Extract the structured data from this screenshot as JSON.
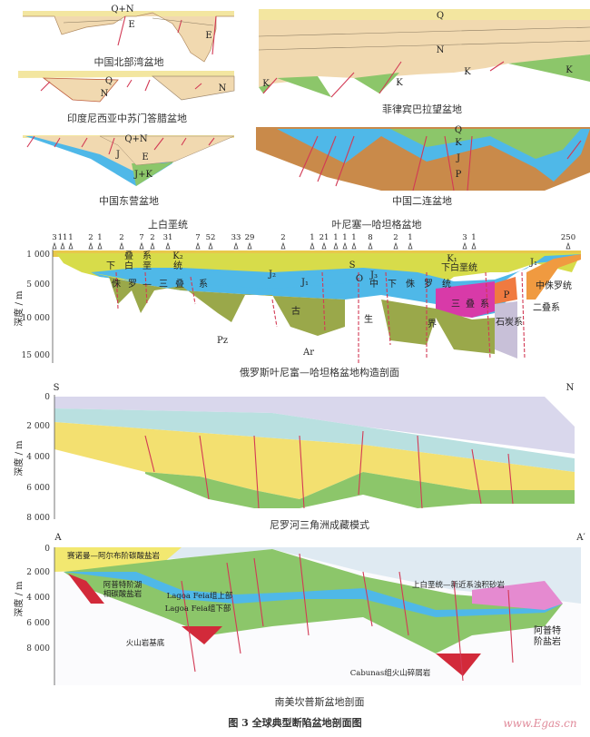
{
  "figure_title": "图 3   全球典型断陷盆地剖面图",
  "watermark": "www.Egas.cn",
  "panels": [
    {
      "caption": "中国北部湾盆地",
      "labels": [
        "Q+N",
        "E",
        "E"
      ]
    },
    {
      "caption": "印度尼西亚中苏门答腊盆地",
      "labels": [
        "Q",
        "N",
        "N"
      ]
    },
    {
      "caption": "中国东营盆地",
      "labels": [
        "Q+N",
        "J",
        "E",
        "J+K"
      ]
    },
    {
      "caption": "菲律宾巴拉望盆地",
      "labels": [
        "Q",
        "N",
        "K",
        "K",
        "K",
        "K"
      ]
    },
    {
      "caption": "中国二连盆地",
      "labels": [
        "Q",
        "K",
        "J",
        "P"
      ]
    },
    {
      "caption": "俄罗斯叶尼富—哈坦格盆地构造剖面",
      "titles": [
        "上白垩统",
        "叶尼塞—哈坦格盆地"
      ],
      "y_axis_label": "深度 / m",
      "y_ticks": [
        "1 000",
        "5 000",
        "10 000",
        "15 000"
      ],
      "wells": [
        "3",
        "11",
        "1",
        "2",
        "1",
        "2",
        "7",
        "2",
        "31",
        "7",
        "52",
        "33",
        "29",
        "2",
        "1",
        "21",
        "1",
        "1",
        "1",
        "8",
        "2",
        "1",
        "3",
        "1",
        "250"
      ],
      "labels": [
        "叠",
        "系",
        "K₂",
        "下",
        "白",
        "垩",
        "统",
        "侏",
        "罗",
        "—",
        "三",
        "叠",
        "系",
        "J₂",
        "J₁",
        "S",
        "O",
        "J₃",
        "中",
        "下",
        "侏",
        "罗",
        "统",
        "K₁",
        "下白垩统",
        "J₁",
        "中侏罗统",
        "三",
        "叠",
        "系",
        "P",
        "二叠系",
        "石炭系",
        "Pz",
        "古",
        "生",
        "界",
        "Ar"
      ]
    },
    {
      "caption": "尼罗河三角洲成藏模式",
      "ends": [
        "S",
        "N"
      ],
      "y_axis_label": "深度 / m",
      "y_ticks": [
        "0",
        "2 000",
        "4 000",
        "6 000",
        "8 000"
      ]
    },
    {
      "caption": "南美坎普斯盆地剖面",
      "ends": [
        "A",
        "A′"
      ],
      "y_axis_label": "深度 / m",
      "y_ticks": [
        "0",
        "2 000",
        "4 000",
        "6 000",
        "8 000"
      ],
      "labels": [
        "赛诺曼—阿尔布阶碳酸盐岩",
        "阿普特阶湖",
        "相碳酸盐岩",
        "Lagoa Feia组上部",
        "Lagoa Feia组下部",
        "火山岩基底",
        "上白垩统—新近系浊积砂岩",
        "阿普特",
        "阶盐岩",
        "Cabunas组火山碎屑岩"
      ]
    }
  ],
  "colors": {
    "quaternary": "#f3e6a0",
    "neogene": "#f1d9b0",
    "cretaceous": "#8cc66a",
    "jurassic": "#4fb8e8",
    "permian": "#c98a4a",
    "triassic": "#d83aa8",
    "paleozoic": "#9aa84a",
    "fault": "#d23a55",
    "salt": "#e58ad0"
  }
}
